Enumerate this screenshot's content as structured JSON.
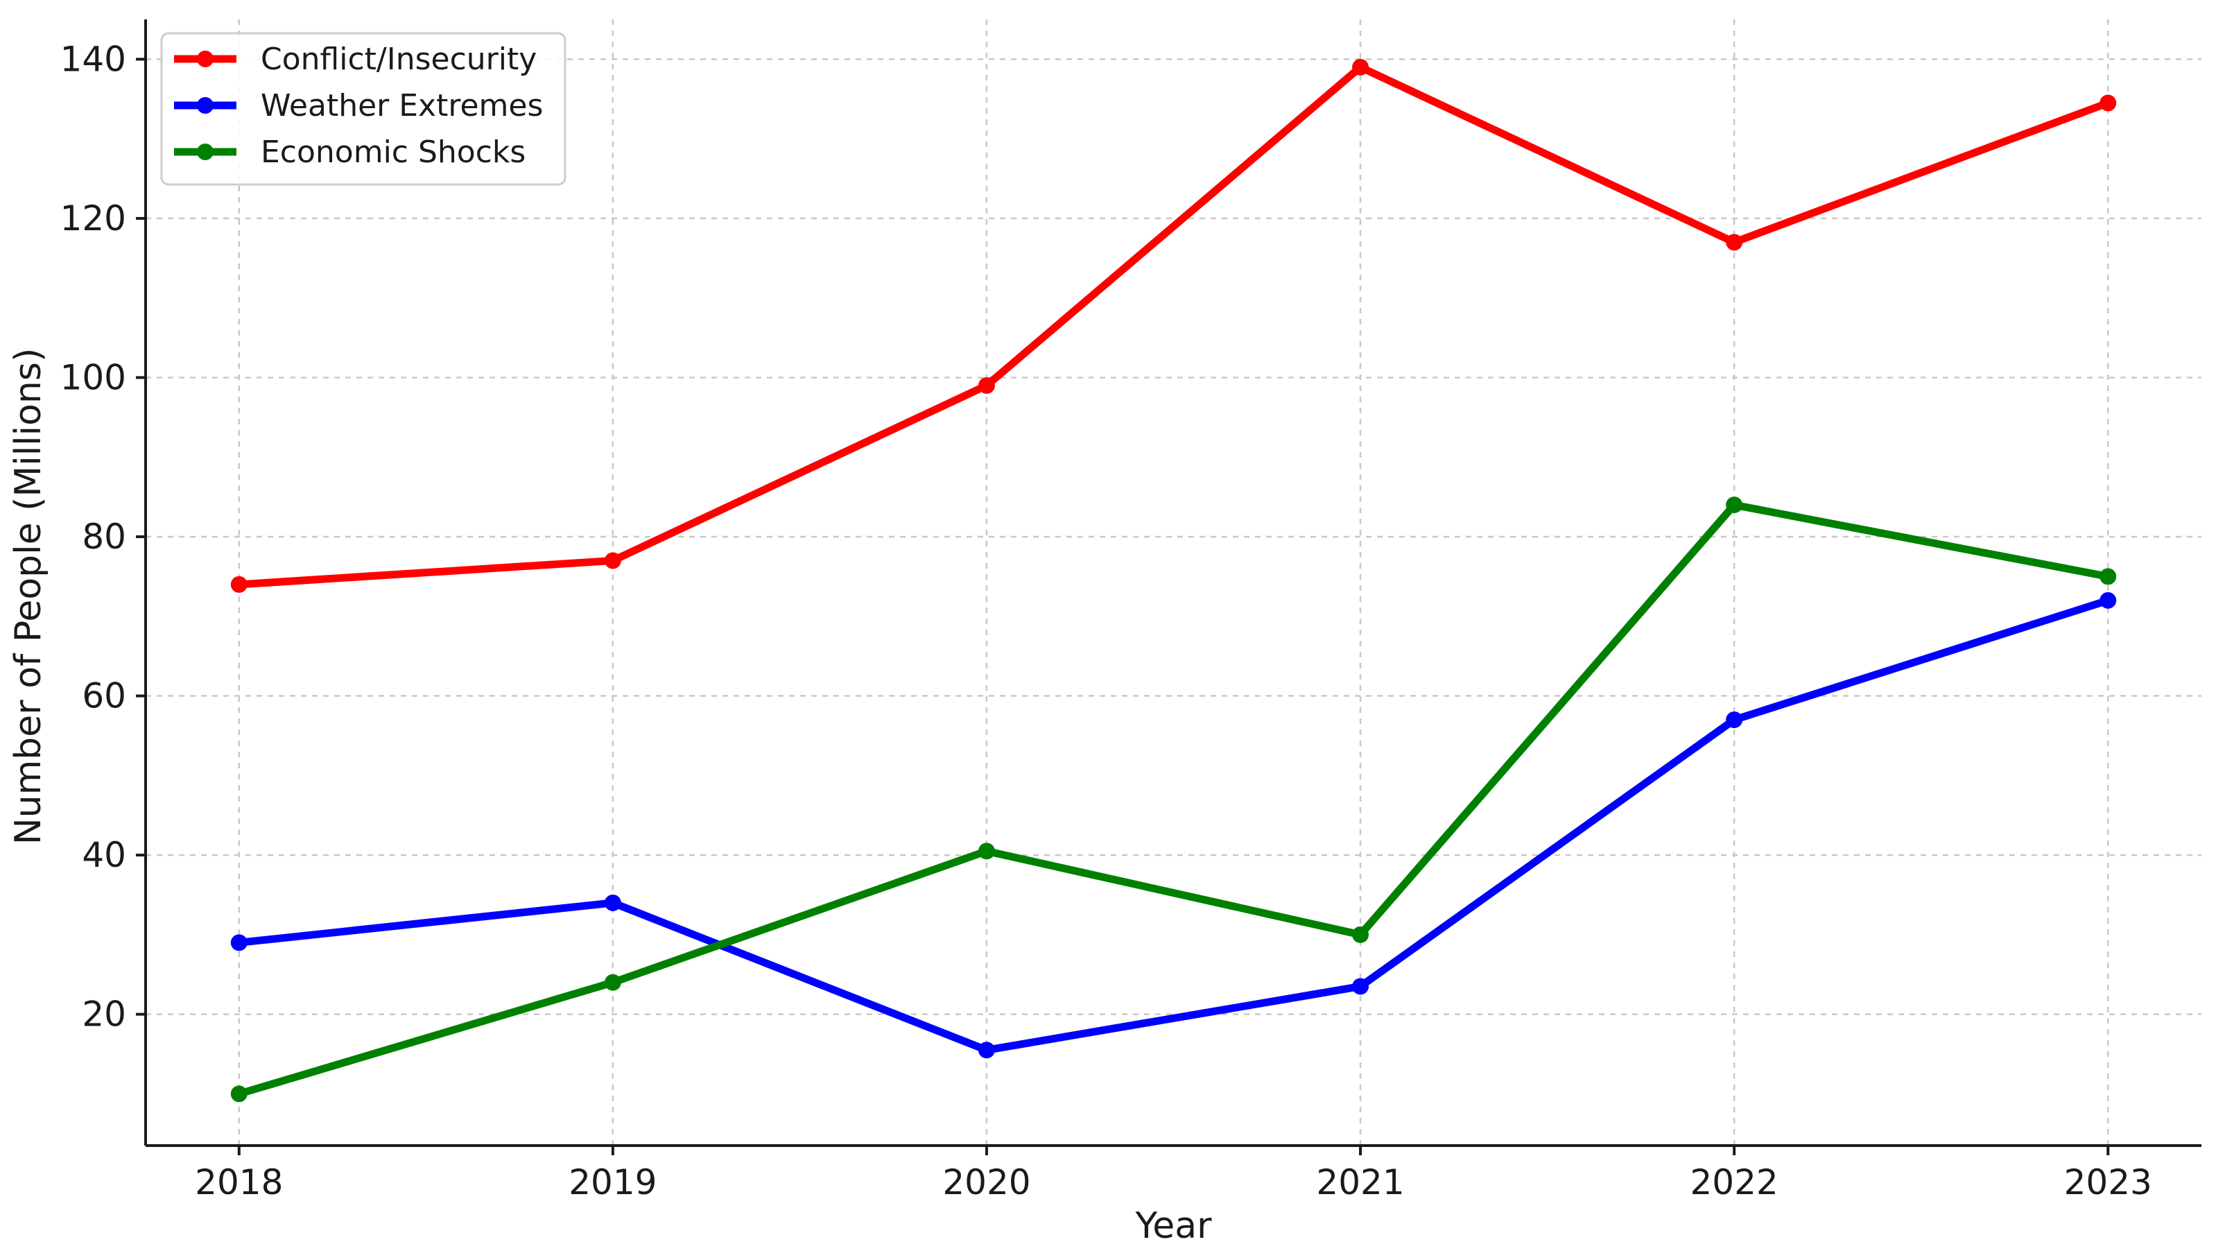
{
  "chart_data": {
    "type": "line",
    "title": "",
    "xlabel": "Year",
    "ylabel": "Number of People (Millions)",
    "x": [
      2018,
      2019,
      2020,
      2021,
      2022,
      2023
    ],
    "x_tick_labels": [
      "2018",
      "2019",
      "2020",
      "2021",
      "2022",
      "2023"
    ],
    "y_ticks": [
      20,
      40,
      60,
      80,
      100,
      120,
      140
    ],
    "y_tick_labels": [
      "20",
      "40",
      "60",
      "80",
      "100",
      "120",
      "140"
    ],
    "ylim": [
      3.5,
      145
    ],
    "grid": true,
    "legend_position": "top-left",
    "series": [
      {
        "name": "Conflict/Insecurity",
        "color": "#ff0000",
        "values": [
          74,
          77,
          99,
          139,
          117,
          134.5
        ]
      },
      {
        "name": "Weather Extremes",
        "color": "#0000ff",
        "values": [
          29,
          34,
          15.5,
          23.5,
          57,
          72
        ]
      },
      {
        "name": "Economic Shocks",
        "color": "#008000",
        "values": [
          10,
          24,
          40.5,
          30,
          84,
          75
        ]
      }
    ]
  }
}
